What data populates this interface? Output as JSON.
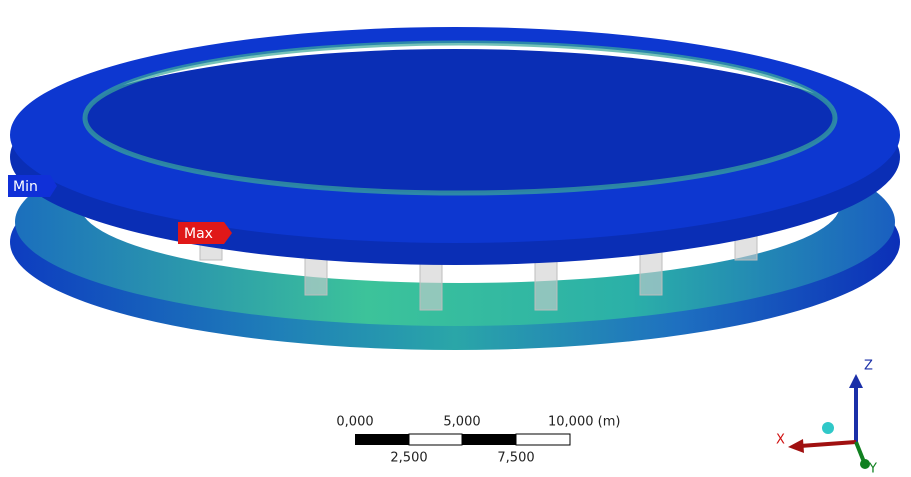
{
  "probes": {
    "min": "Min",
    "max": "Max"
  },
  "scale_bar": {
    "top_labels": [
      "0,000",
      "5,000",
      "10,000 (m)"
    ],
    "bottom_labels": [
      "2,500",
      "7,500"
    ]
  },
  "triad": {
    "z": "Z",
    "x": "X",
    "y": "Y"
  }
}
